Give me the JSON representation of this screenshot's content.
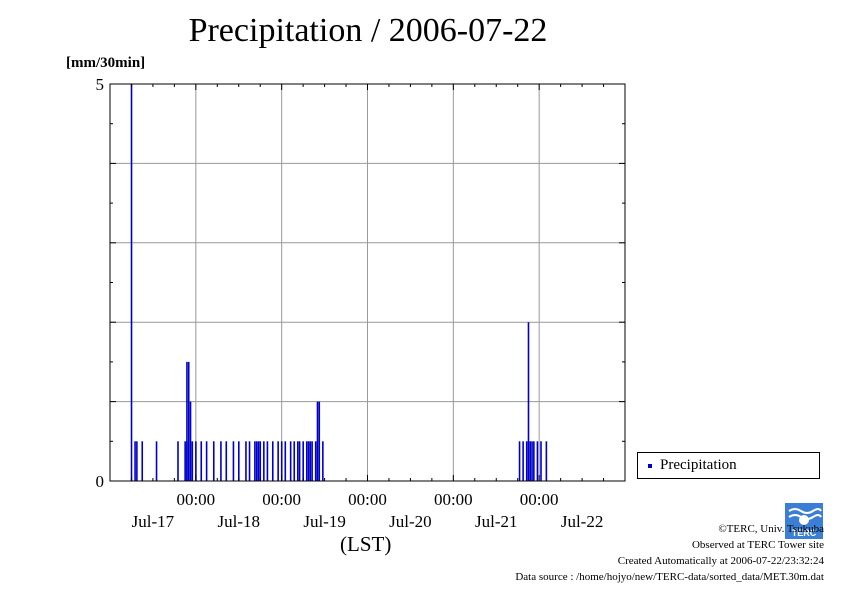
{
  "title": "Precipitation / 2006-07-22",
  "unit_label": "[mm/30min]",
  "xaxis_label": "(LST)",
  "legend": {
    "label": "Precipitation"
  },
  "credits": {
    "line1": "©TERC, Univ. Tsukuba",
    "line2": "Observed at TERC Tower site",
    "line3": "Created Automatically at 2006-07-22/23:32:24",
    "line4": "Data source : /home/hojyo/new/TERC-data/sorted_data/MET.30m.dat"
  },
  "logo_text": "TERC",
  "colors": {
    "bar": "#0000cc",
    "grid": "#999999",
    "axis": "#000000"
  },
  "chart_data": {
    "type": "bar",
    "title": "Precipitation / 2006-07-22",
    "ylabel": "[mm/30min]",
    "xlabel": "(LST)",
    "ylim": [
      0,
      5
    ],
    "y_ticks": [
      {
        "value": 0,
        "label": "0"
      },
      {
        "value": 5,
        "label": "5"
      }
    ],
    "y_grid": [
      1,
      2,
      3,
      4
    ],
    "x_hours_range": [
      0,
      144
    ],
    "x_ticks": [
      {
        "hour": 24,
        "time": "00:00",
        "date": "Jul-17"
      },
      {
        "hour": 48,
        "time": "00:00",
        "date": "Jul-18"
      },
      {
        "hour": 72,
        "time": "00:00",
        "date": "Jul-19"
      },
      {
        "hour": 96,
        "time": "00:00",
        "date": "Jul-20"
      },
      {
        "hour": 120,
        "time": "00:00",
        "date": "Jul-21"
      },
      {
        "hour": 144,
        "time": "",
        "date": "Jul-22"
      }
    ],
    "grid": true,
    "series": [
      {
        "name": "Precipitation",
        "points": [
          [
            6.0,
            5.0
          ],
          [
            7.0,
            0.5
          ],
          [
            7.5,
            0.5
          ],
          [
            9.0,
            0.5
          ],
          [
            13.0,
            0.5
          ],
          [
            19.0,
            0.5
          ],
          [
            21.0,
            0.5
          ],
          [
            21.5,
            0.5
          ],
          [
            21.5,
            1.5
          ],
          [
            22.0,
            1.5
          ],
          [
            22.5,
            1.0
          ],
          [
            23.0,
            0.5
          ],
          [
            24.0,
            0.5
          ],
          [
            25.5,
            0.5
          ],
          [
            27.0,
            0.5
          ],
          [
            29.0,
            0.5
          ],
          [
            31.0,
            0.5
          ],
          [
            32.5,
            0.5
          ],
          [
            34.5,
            0.5
          ],
          [
            36.0,
            0.5
          ],
          [
            38.0,
            0.5
          ],
          [
            39.0,
            0.5
          ],
          [
            40.5,
            0.5
          ],
          [
            41.0,
            0.5
          ],
          [
            41.5,
            0.5
          ],
          [
            42.0,
            0.5
          ],
          [
            43.0,
            0.5
          ],
          [
            44.0,
            0.5
          ],
          [
            45.5,
            0.5
          ],
          [
            47.0,
            0.5
          ],
          [
            48.0,
            0.5
          ],
          [
            49.0,
            0.5
          ],
          [
            50.5,
            0.5
          ],
          [
            51.5,
            0.5
          ],
          [
            52.5,
            0.5
          ],
          [
            53.0,
            0.5
          ],
          [
            54.0,
            0.5
          ],
          [
            55.0,
            0.5
          ],
          [
            55.5,
            0.5
          ],
          [
            56.0,
            0.5
          ],
          [
            56.5,
            0.5
          ],
          [
            57.5,
            0.5
          ],
          [
            58.0,
            1.0
          ],
          [
            58.5,
            1.0
          ],
          [
            59.5,
            0.5
          ],
          [
            114.5,
            0.5
          ],
          [
            115.5,
            0.5
          ],
          [
            116.5,
            0.5
          ],
          [
            117.0,
            2.0
          ],
          [
            117.5,
            0.5
          ],
          [
            118.0,
            0.5
          ],
          [
            118.5,
            0.5
          ],
          [
            119.5,
            0.5
          ],
          [
            120.5,
            0.5
          ],
          [
            122.0,
            0.5
          ]
        ]
      }
    ]
  }
}
